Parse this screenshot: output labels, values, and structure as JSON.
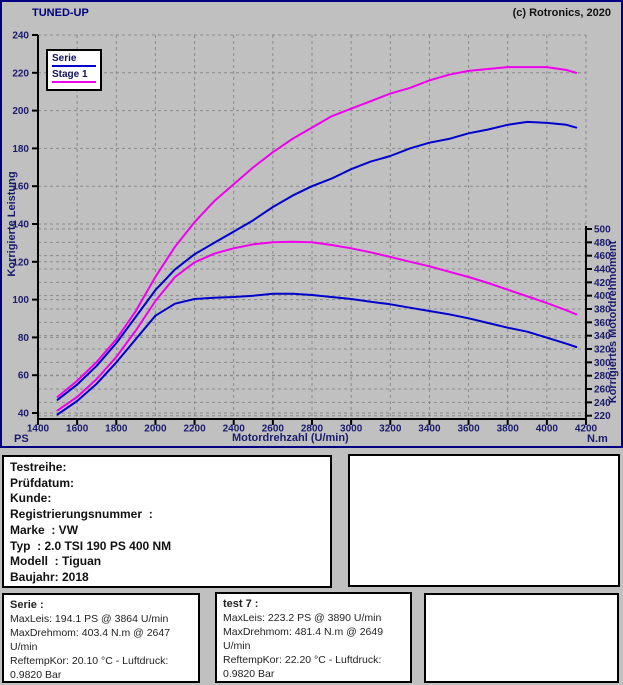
{
  "header": {
    "title": "TUNED-UP",
    "copyright": "(c) Rotronics, 2020"
  },
  "colors": {
    "background": "#C0C0C0",
    "panel_border": "#000080",
    "serie_curve": "#0000CC",
    "stage1_curve": "#EE00EE",
    "grid": "#8a8a8a",
    "axis": "#000000",
    "axis_text": "#1b1b6e",
    "box_background": "#FFFFFF"
  },
  "chart_data": {
    "type": "line",
    "x_label": "Motordrehzahl (U/min)",
    "y_left_label": "Korrigierte Leistung",
    "y_right_label": "Korrigiertes Motordrehmoment",
    "unit_left": "PS",
    "unit_right": "N.m",
    "x_range": [
      1400,
      4200
    ],
    "y_left_range": [
      40,
      240
    ],
    "y_right_range": [
      220,
      500
    ],
    "x_ticks": [
      1400,
      1600,
      1800,
      2000,
      2200,
      2400,
      2600,
      2800,
      3000,
      3200,
      3400,
      3600,
      3800,
      4000,
      4200
    ],
    "y_left_ticks": [
      40,
      60,
      80,
      100,
      120,
      140,
      160,
      180,
      200,
      220,
      240
    ],
    "y_right_ticks": [
      220,
      240,
      260,
      280,
      300,
      320,
      340,
      360,
      380,
      400,
      420,
      440,
      460,
      480,
      500
    ],
    "grid": true,
    "legend": {
      "position": "top-left",
      "entries": [
        {
          "label": "Serie",
          "color": "#0000CC"
        },
        {
          "label": "Stage 1",
          "color": "#EE00EE"
        }
      ]
    },
    "rpm": [
      1500,
      1600,
      1700,
      1800,
      1900,
      2000,
      2100,
      2200,
      2300,
      2400,
      2500,
      2600,
      2700,
      2800,
      2900,
      3000,
      3100,
      3200,
      3300,
      3400,
      3500,
      3600,
      3700,
      3800,
      3900,
      4000,
      4100,
      4150
    ],
    "series": [
      {
        "name": "Serie Leistung",
        "axis": "left",
        "color": "#0000CC",
        "values": [
          47,
          55,
          65,
          77,
          91,
          105,
          116,
          124,
          130,
          136,
          142,
          149,
          155,
          160,
          164,
          169,
          173,
          176,
          180,
          183,
          185,
          188,
          190,
          192.5,
          194,
          193.5,
          192.5,
          191
        ]
      },
      {
        "name": "Stage 1 Leistung",
        "axis": "left",
        "color": "#EE00EE",
        "values": [
          48.5,
          57,
          67,
          79,
          94,
          112,
          128,
          141,
          152,
          161,
          170,
          178,
          185,
          191,
          197,
          201,
          205,
          209,
          212,
          216,
          219,
          221,
          222,
          223,
          223,
          223,
          221.5,
          220
        ]
      },
      {
        "name": "Serie Drehmoment",
        "axis": "right",
        "color": "#0000CC",
        "values": [
          222,
          242,
          268,
          300,
          335,
          370,
          388,
          395,
          397,
          398,
          400,
          403,
          403,
          401,
          398,
          395,
          391,
          387,
          382,
          377,
          372,
          366,
          359,
          352,
          346,
          337,
          328,
          323
        ]
      },
      {
        "name": "Stage 1 Drehmoment",
        "axis": "right",
        "color": "#EE00EE",
        "values": [
          228,
          248,
          275,
          308,
          348,
          392,
          428,
          450,
          463,
          471,
          477,
          480,
          481,
          480,
          476,
          471,
          465,
          458,
          451,
          444,
          436,
          428,
          419,
          409,
          399,
          389,
          378,
          372
        ]
      }
    ]
  },
  "footer": {
    "info_box": {
      "lines": [
        "Testreihe:",
        "Prüfdatum:",
        "Kunde:",
        "Registrierungsnummer  :",
        "Marke  : VW",
        "Typ  : 2.0 TSI 190 PS 400 NM",
        "Modell  : Tiguan",
        "Baujahr: 2018"
      ]
    },
    "serie_box": {
      "title": "Serie :",
      "lines": [
        "MaxLeis: 194.1 PS @ 3864 U/min",
        "MaxDrehmom: 403.4 N.m @ 2647",
        "U/min",
        "ReftempKor: 20.10 °C - Luftdruck:",
        "0.9820 Bar"
      ]
    },
    "test7_box": {
      "title": "test 7 :",
      "lines": [
        "MaxLeis: 223.2 PS @ 3890 U/min",
        "MaxDrehmom: 481.4 N.m @ 2649",
        "U/min",
        "ReftempKor: 22.20 °C - Luftdruck:",
        "0.9820 Bar"
      ]
    }
  }
}
